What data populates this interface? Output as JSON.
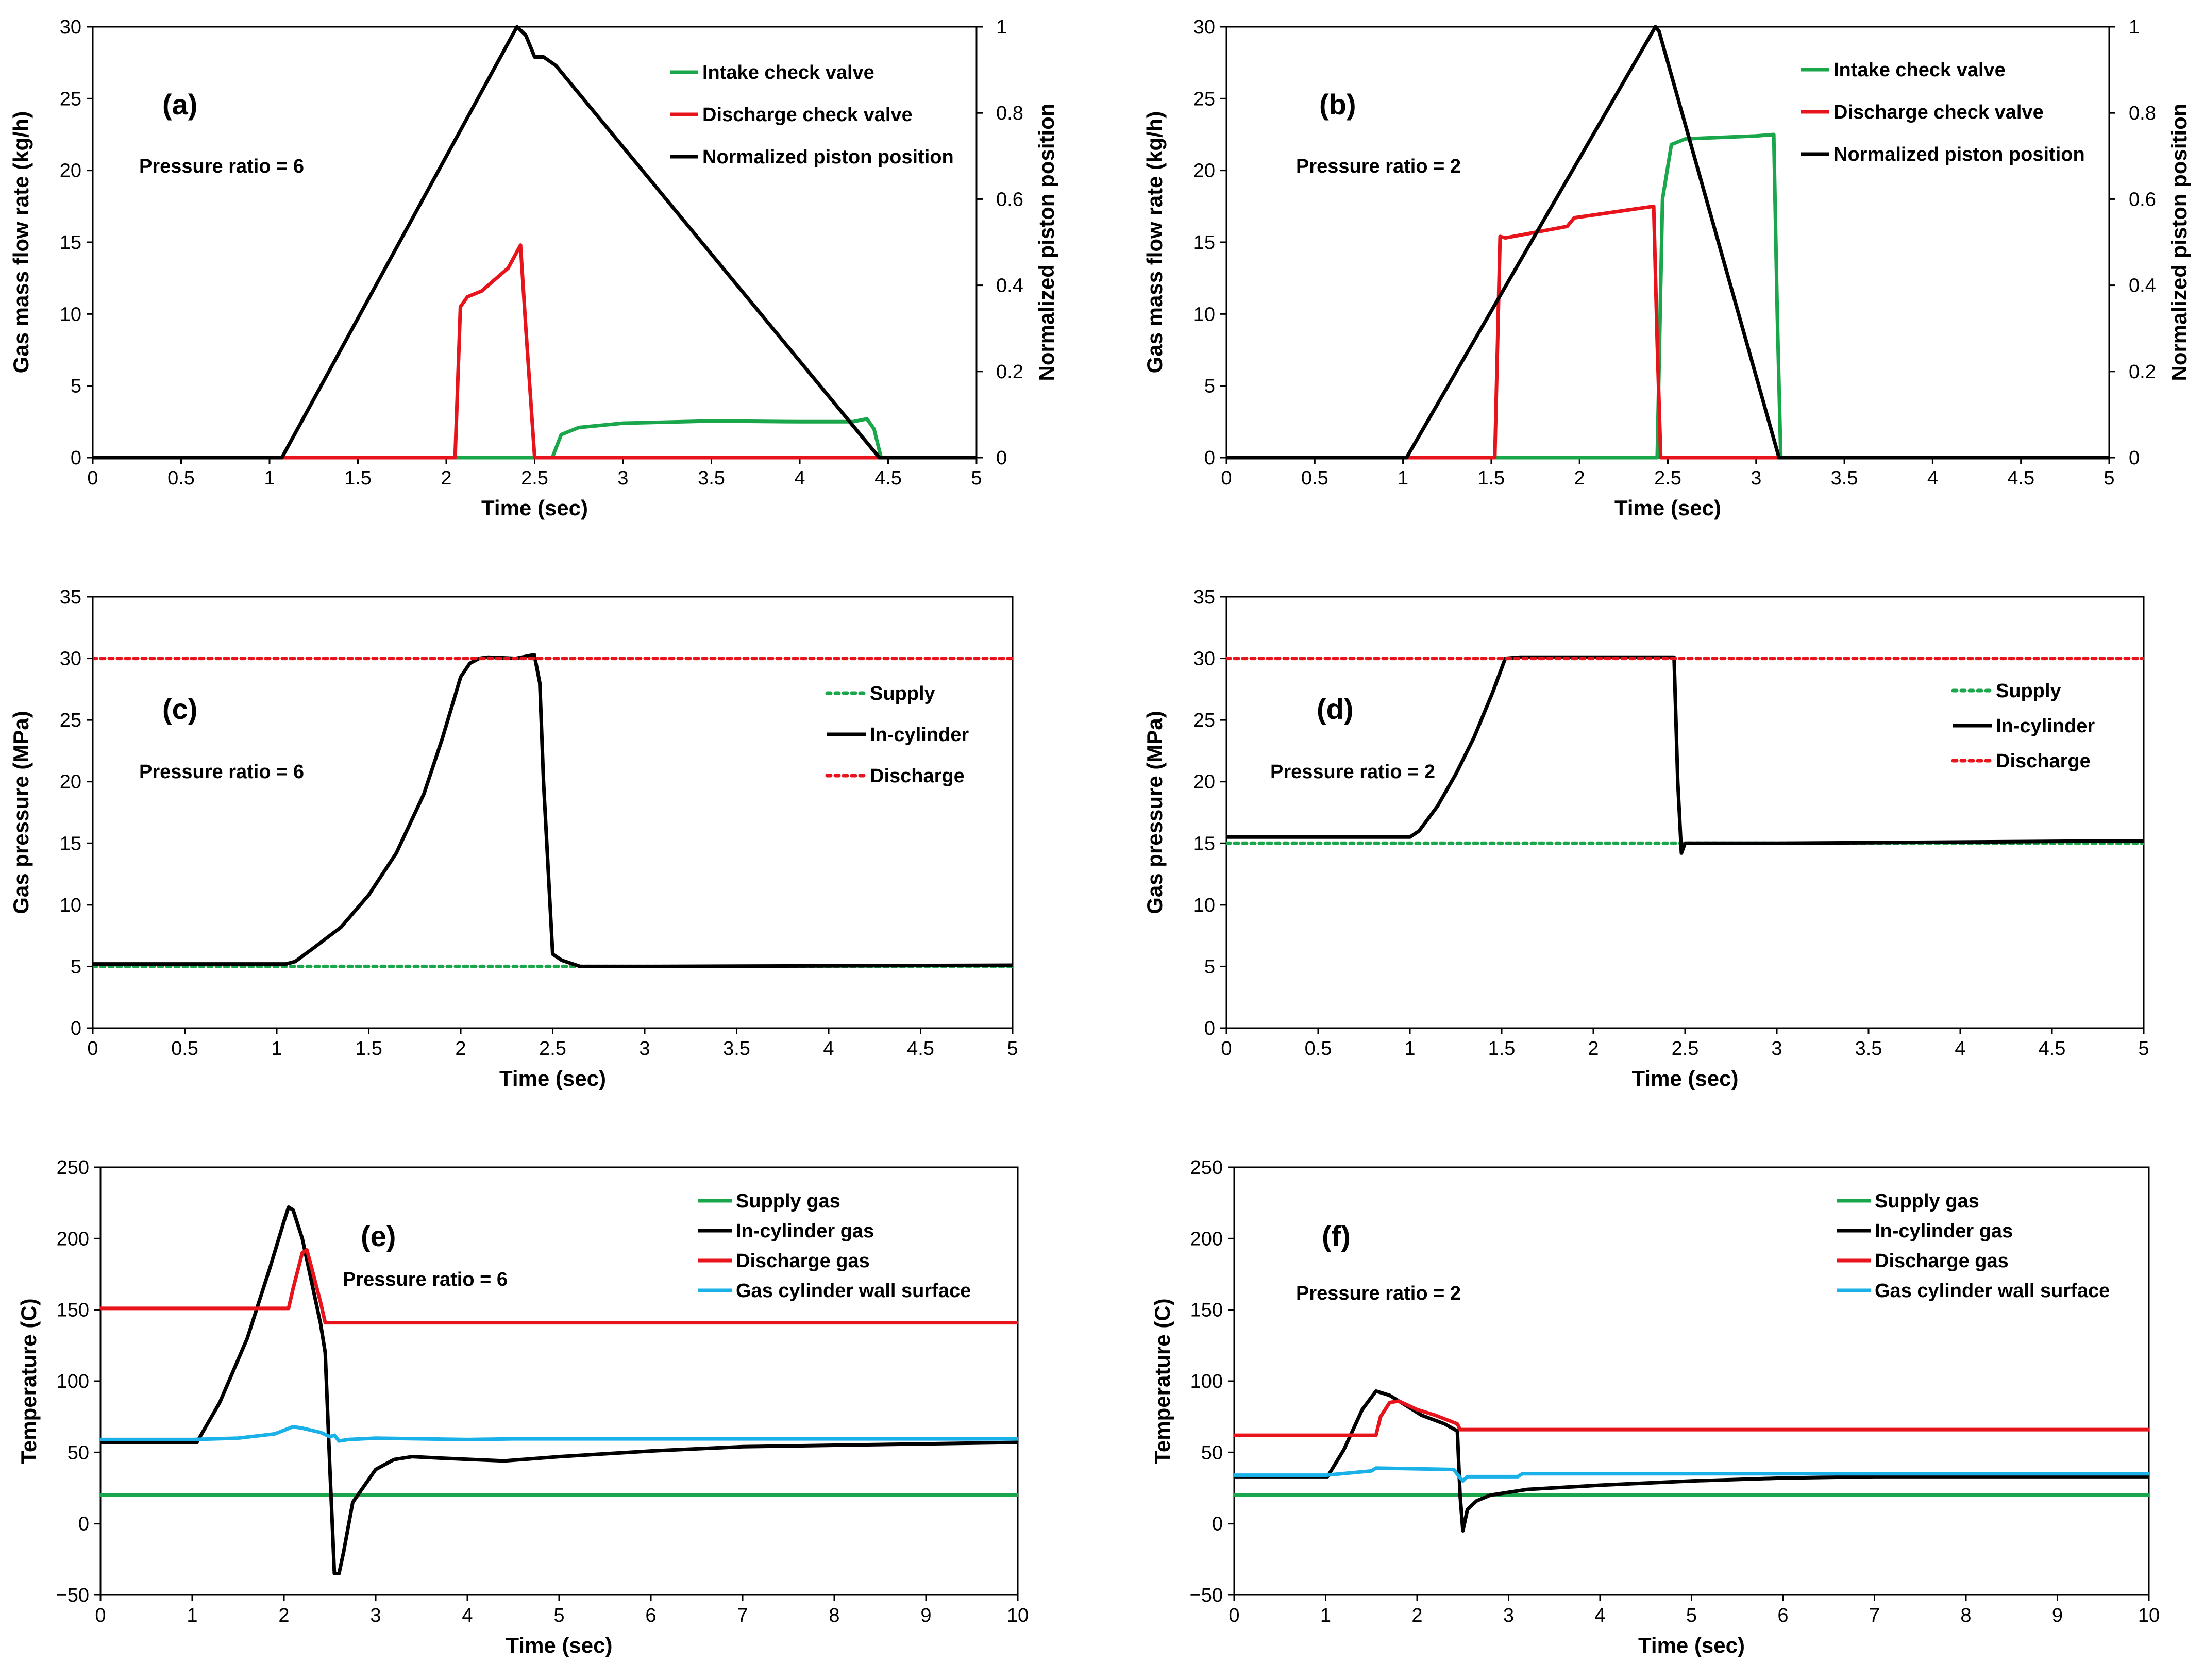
{
  "colors": {
    "green": "#1aa64a",
    "red": "#e8141b",
    "black": "#000000",
    "cyan": "#1ab0e8"
  },
  "chart_data": [
    {
      "id": "a",
      "type": "line",
      "panel_label": "(a)",
      "annotation": "Pressure ratio = 6",
      "xlabel": "Time (sec)",
      "ylabel": "Gas mass flow rate (kg/h)",
      "y2label": "Normalized piston position",
      "xlim": [
        0,
        5
      ],
      "ylim": [
        0,
        30
      ],
      "y2lim": [
        0,
        1
      ],
      "xticks": [
        "0",
        "0.5",
        "1",
        "1.5",
        "2",
        "2.5",
        "3",
        "3.5",
        "4",
        "4.5",
        "5"
      ],
      "yticks": [
        "0",
        "5",
        "10",
        "15",
        "20",
        "25",
        "30"
      ],
      "y2ticks": [
        "0",
        "0.2",
        "0.4",
        "0.6",
        "0.8",
        "1"
      ],
      "series": [
        {
          "name": "Intake check valve",
          "color": "green",
          "axis": "y",
          "style": "solid",
          "x": [
            0,
            2.6,
            2.65,
            2.75,
            3.0,
            3.5,
            4.0,
            4.3,
            4.38,
            4.42,
            4.46,
            5
          ],
          "y": [
            0,
            0,
            1.6,
            2.1,
            2.4,
            2.55,
            2.5,
            2.5,
            2.7,
            2.0,
            0,
            0
          ]
        },
        {
          "name": "Discharge check valve",
          "color": "red",
          "axis": "y",
          "style": "solid",
          "x": [
            0,
            2.05,
            2.08,
            2.12,
            2.2,
            2.35,
            2.42,
            2.45,
            2.5,
            5
          ],
          "y": [
            0,
            0,
            10.5,
            11.2,
            11.6,
            13.2,
            14.8,
            9.0,
            0,
            5e-09
          ]
        },
        {
          "name": "Normalized piston position",
          "color": "black",
          "axis": "y2",
          "style": "solid",
          "x": [
            0,
            1.07,
            2.4,
            2.45,
            2.5,
            2.55,
            2.62,
            4.45,
            5
          ],
          "y": [
            0,
            0,
            1.0,
            0.98,
            0.93,
            0.93,
            0.91,
            0,
            0
          ]
        }
      ]
    },
    {
      "id": "b",
      "type": "line",
      "panel_label": "(b)",
      "annotation": "Pressure ratio = 2",
      "xlabel": "Time (sec)",
      "ylabel": "Gas mass flow rate (kg/h)",
      "y2label": "Normalized piston position",
      "xlim": [
        0,
        5
      ],
      "ylim": [
        0,
        30
      ],
      "y2lim": [
        0,
        1
      ],
      "xticks": [
        "0",
        "0.5",
        "1",
        "1.5",
        "2",
        "2.5",
        "3",
        "3.5",
        "4",
        "4.5",
        "5"
      ],
      "yticks": [
        "0",
        "5",
        "10",
        "15",
        "20",
        "25",
        "30"
      ],
      "y2ticks": [
        "0",
        "0.2",
        "0.4",
        "0.6",
        "0.8",
        "1"
      ],
      "series": [
        {
          "name": "Intake check valve",
          "color": "green",
          "axis": "y",
          "style": "solid",
          "x": [
            0,
            2.44,
            2.47,
            2.52,
            2.6,
            3.0,
            3.1,
            3.12,
            3.14,
            5
          ],
          "y": [
            0,
            0,
            18,
            21.8,
            22.2,
            22.4,
            22.5,
            10,
            0,
            0
          ]
        },
        {
          "name": "Discharge check valve",
          "color": "red",
          "axis": "y",
          "style": "solid",
          "x": [
            0,
            1.52,
            1.55,
            1.58,
            1.93,
            1.97,
            2.42,
            2.44,
            2.46,
            5
          ],
          "y": [
            0,
            0,
            15.4,
            15.3,
            16.1,
            16.7,
            17.5,
            8,
            0,
            0
          ]
        },
        {
          "name": "Normalized piston position",
          "color": "black",
          "axis": "y2",
          "style": "solid",
          "x": [
            0,
            1.02,
            2.43,
            2.45,
            3.13,
            5
          ],
          "y": [
            0,
            0,
            1.0,
            0.99,
            0,
            0
          ]
        }
      ]
    },
    {
      "id": "c",
      "type": "line",
      "panel_label": "(c)",
      "annotation": "Pressure ratio = 6",
      "xlabel": "Time (sec)",
      "ylabel": "Gas pressure (MPa)",
      "xlim": [
        0,
        5
      ],
      "ylim": [
        0,
        35
      ],
      "xticks": [
        "0",
        "0.5",
        "1",
        "1.5",
        "2",
        "2.5",
        "3",
        "3.5",
        "4",
        "4.5",
        "5"
      ],
      "yticks": [
        "0",
        "5",
        "10",
        "15",
        "20",
        "25",
        "30",
        "35"
      ],
      "series": [
        {
          "name": "Supply",
          "color": "green",
          "axis": "y",
          "style": "dotted",
          "x": [
            0,
            5
          ],
          "y": [
            5,
            5
          ]
        },
        {
          "name": "In-cylinder",
          "color": "black",
          "axis": "y",
          "style": "solid",
          "x": [
            0,
            1.05,
            1.1,
            1.2,
            1.35,
            1.5,
            1.65,
            1.8,
            1.9,
            2.0,
            2.05,
            2.1,
            2.15,
            2.3,
            2.4,
            2.43,
            2.45,
            2.5,
            2.55,
            2.65,
            3.0,
            5
          ],
          "y": [
            5.2,
            5.2,
            5.4,
            6.5,
            8.2,
            10.8,
            14.2,
            19.0,
            23.5,
            28.5,
            29.6,
            30.0,
            30.1,
            30.0,
            30.3,
            28.0,
            20.0,
            6.0,
            5.5,
            5.0,
            5.0,
            5.1
          ]
        },
        {
          "name": "Discharge",
          "color": "red",
          "axis": "y",
          "style": "dotted",
          "x": [
            0,
            5
          ],
          "y": [
            30,
            30
          ]
        }
      ]
    },
    {
      "id": "d",
      "type": "line",
      "panel_label": "(d)",
      "annotation": "Pressure ratio = 2",
      "xlabel": "Time (sec)",
      "ylabel": "Gas pressure (MPa)",
      "xlim": [
        0,
        5
      ],
      "ylim": [
        0,
        35
      ],
      "xticks": [
        "0",
        "0.5",
        "1",
        "1.5",
        "2",
        "2.5",
        "3",
        "3.5",
        "4",
        "4.5",
        "5"
      ],
      "yticks": [
        "0",
        "5",
        "10",
        "15",
        "20",
        "25",
        "30",
        "35"
      ],
      "series": [
        {
          "name": "Supply",
          "color": "green",
          "axis": "y",
          "style": "dotted",
          "x": [
            0,
            5
          ],
          "y": [
            15,
            15
          ]
        },
        {
          "name": "In-cylinder",
          "color": "black",
          "axis": "y",
          "style": "solid",
          "x": [
            0,
            1.0,
            1.05,
            1.15,
            1.25,
            1.35,
            1.45,
            1.52,
            1.6,
            2.0,
            2.44,
            2.46,
            2.48,
            2.5,
            2.55,
            3.0,
            5
          ],
          "y": [
            15.5,
            15.5,
            16.0,
            18.0,
            20.6,
            23.6,
            27.2,
            30.0,
            30.1,
            30.1,
            30.1,
            20.0,
            14.2,
            15.0,
            15.0,
            15.0,
            15.2
          ]
        },
        {
          "name": "Discharge",
          "color": "red",
          "axis": "y",
          "style": "dotted",
          "x": [
            0,
            5
          ],
          "y": [
            30,
            30
          ]
        }
      ]
    },
    {
      "id": "e",
      "type": "line",
      "panel_label": "(e)",
      "annotation": "Pressure ratio = 6",
      "xlabel": "Time (sec)",
      "ylabel": "Temperature (C)",
      "xlim": [
        0,
        10
      ],
      "ylim": [
        -50,
        250
      ],
      "xticks": [
        "0",
        "1",
        "2",
        "3",
        "4",
        "5",
        "6",
        "7",
        "8",
        "9",
        "10"
      ],
      "yticks": [
        "−50",
        "0",
        "50",
        "100",
        "150",
        "200",
        "250"
      ],
      "series": [
        {
          "name": "Supply gas",
          "color": "green",
          "axis": "y",
          "style": "solid",
          "x": [
            0,
            10
          ],
          "y": [
            20,
            20
          ]
        },
        {
          "name": "In-cylinder gas",
          "color": "black",
          "axis": "y",
          "style": "solid",
          "x": [
            0,
            1.05,
            1.3,
            1.6,
            1.85,
            2.0,
            2.05,
            2.1,
            2.2,
            2.3,
            2.4,
            2.45,
            2.5,
            2.55,
            2.6,
            2.65,
            2.75,
            3.0,
            3.2,
            3.4,
            3.7,
            4.4,
            5.0,
            6.0,
            7.0,
            8.0,
            9.0,
            10
          ],
          "y": [
            57,
            57,
            85,
            130,
            180,
            212,
            222,
            220,
            200,
            170,
            140,
            120,
            40,
            -35,
            -35,
            -20,
            15,
            38,
            45,
            47,
            46,
            44,
            47,
            51,
            54,
            55,
            56,
            57
          ]
        },
        {
          "name": "Discharge gas",
          "color": "red",
          "axis": "y",
          "style": "solid",
          "x": [
            0,
            2.05,
            2.1,
            2.2,
            2.25,
            2.3,
            2.4,
            2.45,
            10
          ],
          "y": [
            151,
            151,
            165,
            190,
            192,
            180,
            155,
            141,
            141
          ]
        },
        {
          "name": "Gas cylinder wall surface",
          "color": "cyan",
          "axis": "y",
          "style": "solid",
          "x": [
            0,
            1.0,
            1.5,
            1.9,
            2.1,
            2.2,
            2.4,
            2.5,
            2.55,
            2.6,
            2.7,
            3.0,
            4.0,
            4.5,
            10
          ],
          "y": [
            59,
            59,
            60,
            63,
            68,
            67,
            64,
            61,
            62,
            58,
            59,
            60,
            59,
            59.5,
            59.5
          ]
        }
      ]
    },
    {
      "id": "f",
      "type": "line",
      "panel_label": "(f)",
      "annotation": "Pressure ratio = 2",
      "xlabel": "Time (sec)",
      "ylabel": "Temperature (C)",
      "xlim": [
        0,
        10
      ],
      "ylim": [
        -50,
        250
      ],
      "xticks": [
        "0",
        "1",
        "2",
        "3",
        "4",
        "5",
        "6",
        "7",
        "8",
        "9",
        "10"
      ],
      "yticks": [
        "−50",
        "0",
        "50",
        "100",
        "150",
        "200",
        "250"
      ],
      "series": [
        {
          "name": "Supply gas",
          "color": "green",
          "axis": "y",
          "style": "solid",
          "x": [
            0,
            10
          ],
          "y": [
            20,
            20
          ]
        },
        {
          "name": "In-cylinder gas",
          "color": "black",
          "axis": "y",
          "style": "solid",
          "x": [
            0,
            1.02,
            1.2,
            1.4,
            1.55,
            1.7,
            1.9,
            2.05,
            2.3,
            2.44,
            2.47,
            2.5,
            2.55,
            2.65,
            2.8,
            3.2,
            4.0,
            5.0,
            6.0,
            7.0,
            8.0,
            10
          ],
          "y": [
            33,
            33,
            52,
            80,
            93,
            90,
            82,
            76,
            70,
            65,
            20,
            -5,
            10,
            16,
            20,
            24,
            27,
            30,
            32,
            33,
            33,
            33
          ]
        },
        {
          "name": "Discharge gas",
          "color": "red",
          "axis": "y",
          "style": "solid",
          "x": [
            0,
            1.55,
            1.6,
            1.7,
            1.8,
            2.0,
            2.2,
            2.44,
            2.47,
            10
          ],
          "y": [
            62,
            62,
            75,
            85,
            86,
            80,
            76,
            70,
            66,
            66
          ]
        },
        {
          "name": "Gas cylinder wall surface",
          "color": "cyan",
          "axis": "y",
          "style": "solid",
          "x": [
            0,
            1.0,
            1.5,
            1.55,
            2.4,
            2.46,
            2.5,
            2.55,
            3.1,
            3.15,
            10
          ],
          "y": [
            34,
            34,
            37,
            39,
            38,
            33,
            30,
            33,
            33,
            35,
            35
          ]
        }
      ]
    }
  ]
}
